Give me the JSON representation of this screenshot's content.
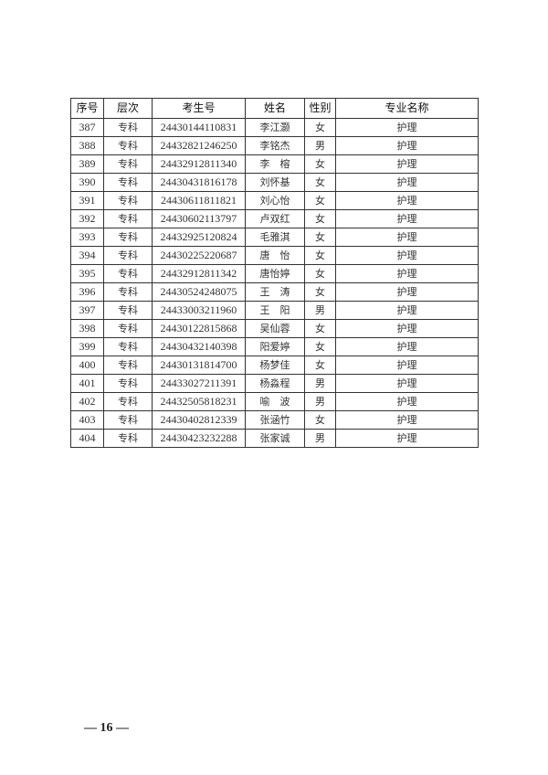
{
  "table": {
    "headers": [
      "序号",
      "层次",
      "考生号",
      "姓名",
      "性别",
      "专业名称"
    ],
    "rows": [
      [
        "387",
        "专科",
        "24430144110831",
        "李江灏",
        "女",
        "护理"
      ],
      [
        "388",
        "专科",
        "24432821246250",
        "李铭杰",
        "男",
        "护理"
      ],
      [
        "389",
        "专科",
        "24432912811340",
        "李　榕",
        "女",
        "护理"
      ],
      [
        "390",
        "专科",
        "24430431816178",
        "刘怀基",
        "女",
        "护理"
      ],
      [
        "391",
        "专科",
        "24430611811821",
        "刘心怡",
        "女",
        "护理"
      ],
      [
        "392",
        "专科",
        "24430602113797",
        "卢双红",
        "女",
        "护理"
      ],
      [
        "393",
        "专科",
        "24432925120824",
        "毛雅淇",
        "女",
        "护理"
      ],
      [
        "394",
        "专科",
        "24430225220687",
        "唐　怡",
        "女",
        "护理"
      ],
      [
        "395",
        "专科",
        "24432912811342",
        "唐怡婷",
        "女",
        "护理"
      ],
      [
        "396",
        "专科",
        "24430524248075",
        "王　涛",
        "女",
        "护理"
      ],
      [
        "397",
        "专科",
        "24433003211960",
        "王　阳",
        "男",
        "护理"
      ],
      [
        "398",
        "专科",
        "24430122815868",
        "吴仙蓉",
        "女",
        "护理"
      ],
      [
        "399",
        "专科",
        "24430432140398",
        "阳爱婷",
        "女",
        "护理"
      ],
      [
        "400",
        "专科",
        "24430131814700",
        "杨梦佳",
        "女",
        "护理"
      ],
      [
        "401",
        "专科",
        "24433027211391",
        "杨淼程",
        "男",
        "护理"
      ],
      [
        "402",
        "专科",
        "24432505818231",
        "喻　波",
        "男",
        "护理"
      ],
      [
        "403",
        "专科",
        "24430402812339",
        "张涵竹",
        "女",
        "护理"
      ],
      [
        "404",
        "专科",
        "24430423232288",
        "张家诚",
        "男",
        "护理"
      ]
    ]
  },
  "footer": {
    "page": "— 16 —"
  }
}
